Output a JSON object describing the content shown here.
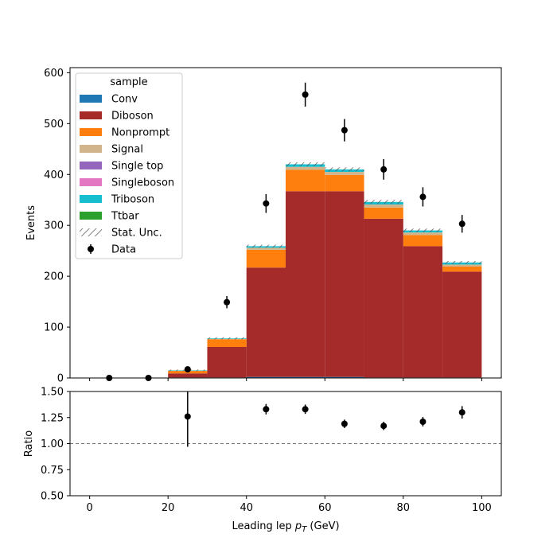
{
  "chart_data": [
    {
      "type": "bar",
      "panel": "main",
      "style": "stacked-histogram",
      "ylabel": "Events",
      "xlim": [
        -5,
        105
      ],
      "ylim": [
        0,
        610
      ],
      "yticks": [
        "0",
        "100",
        "200",
        "300",
        "400",
        "500",
        "600"
      ],
      "bins": [
        [
          0,
          10
        ],
        [
          10,
          20
        ],
        [
          20,
          30
        ],
        [
          30,
          40
        ],
        [
          40,
          50
        ],
        [
          50,
          60
        ],
        [
          60,
          70
        ],
        [
          70,
          80
        ],
        [
          80,
          90
        ],
        [
          90,
          100
        ]
      ],
      "legend": {
        "title": "sample",
        "placement": "top-left",
        "entries": [
          "Conv",
          "Diboson",
          "Nonprompt",
          "Signal",
          "Single top",
          "Singleboson",
          "Triboson",
          "Ttbar",
          "Stat. Unc.",
          "Data"
        ]
      },
      "series": [
        {
          "name": "Conv",
          "color": "#1f77b4",
          "values": [
            0,
            0,
            1,
            1,
            2,
            2,
            2,
            1,
            1,
            1
          ]
        },
        {
          "name": "Diboson",
          "color": "#a52a2a",
          "values": [
            0,
            0,
            8,
            60,
            215,
            365,
            365,
            312,
            258,
            208
          ]
        },
        {
          "name": "Nonprompt",
          "color": "#ff7f0e",
          "values": [
            0,
            0,
            5,
            15,
            35,
            42,
            32,
            22,
            22,
            10
          ]
        },
        {
          "name": "Signal",
          "color": "#d2b48c",
          "values": [
            0,
            0,
            0.5,
            1,
            4,
            6,
            6,
            6,
            5,
            4
          ]
        },
        {
          "name": "Single top",
          "color": "#9467bd",
          "values": [
            0,
            0,
            0,
            0,
            0,
            0,
            0,
            0,
            0,
            0
          ]
        },
        {
          "name": "Singleboson",
          "color": "#e377c2",
          "values": [
            0,
            0,
            0,
            0,
            0,
            0,
            0,
            0,
            0,
            0
          ]
        },
        {
          "name": "Triboson",
          "color": "#17becf",
          "values": [
            0,
            0,
            0.5,
            1,
            3,
            5,
            5,
            5,
            4,
            4
          ]
        },
        {
          "name": "Ttbar",
          "color": "#2ca02c",
          "values": [
            0,
            0,
            0,
            0,
            0,
            0,
            0,
            0,
            0,
            0
          ]
        }
      ],
      "stat_unc": [
        0,
        0,
        1.5,
        2,
        3,
        4,
        4,
        4,
        3.5,
        3
      ],
      "data": {
        "name": "Data",
        "x": [
          5,
          15,
          25,
          35,
          45,
          55,
          65,
          75,
          85,
          95
        ],
        "y": [
          0,
          0,
          17,
          149,
          343,
          557,
          487,
          410,
          356,
          303
        ],
        "yerr": [
          0,
          0,
          4,
          12,
          18.5,
          23.6,
          22,
          20.2,
          18.9,
          17.4
        ]
      }
    },
    {
      "type": "scatter",
      "panel": "ratio",
      "xlabel": "Leading lep pT (GeV)",
      "ylabel": "Ratio",
      "xlim": [
        -5,
        105
      ],
      "ylim": [
        0.5,
        1.5
      ],
      "xticks": [
        "0",
        "20",
        "40",
        "60",
        "80",
        "100"
      ],
      "yticks": [
        "0.50",
        "0.75",
        "1.00",
        "1.25",
        "1.50"
      ],
      "reference_line": 1.0,
      "x": [
        25,
        45,
        55,
        65,
        75,
        85,
        95
      ],
      "y": [
        1.26,
        1.33,
        1.33,
        1.19,
        1.17,
        1.21,
        1.3
      ],
      "yerr": [
        0.29,
        0.05,
        0.045,
        0.04,
        0.04,
        0.045,
        0.06
      ]
    }
  ]
}
